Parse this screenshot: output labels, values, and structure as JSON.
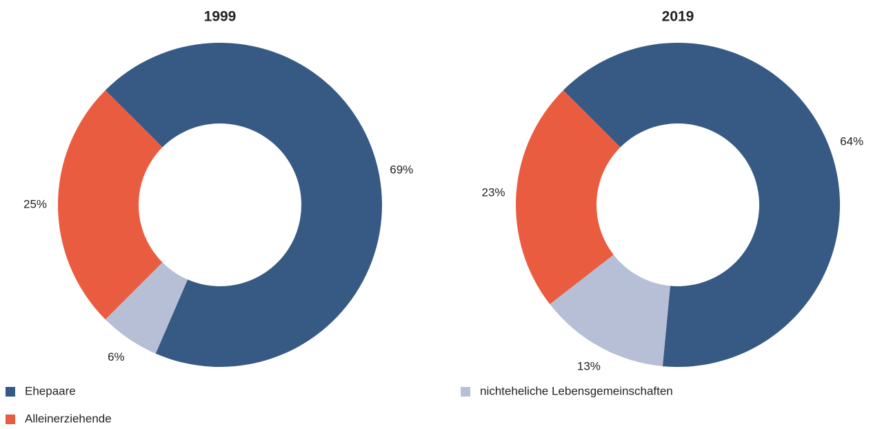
{
  "chart_data": [
    {
      "type": "pie",
      "title": "1999",
      "values": [
        69,
        6,
        25
      ],
      "value_labels": [
        "69%",
        "6%",
        "25%"
      ]
    },
    {
      "type": "pie",
      "title": "2019",
      "values": [
        64,
        13,
        23
      ],
      "value_labels": [
        "64%",
        "13%",
        "23%"
      ]
    }
  ],
  "legend": {
    "categories": [
      "Ehepaare",
      "nichteheliche Lebensgemeinschaften",
      "Alleinerziehende"
    ],
    "colors": [
      "#375a84",
      "#b7bfd6",
      "#e95c3f"
    ]
  }
}
